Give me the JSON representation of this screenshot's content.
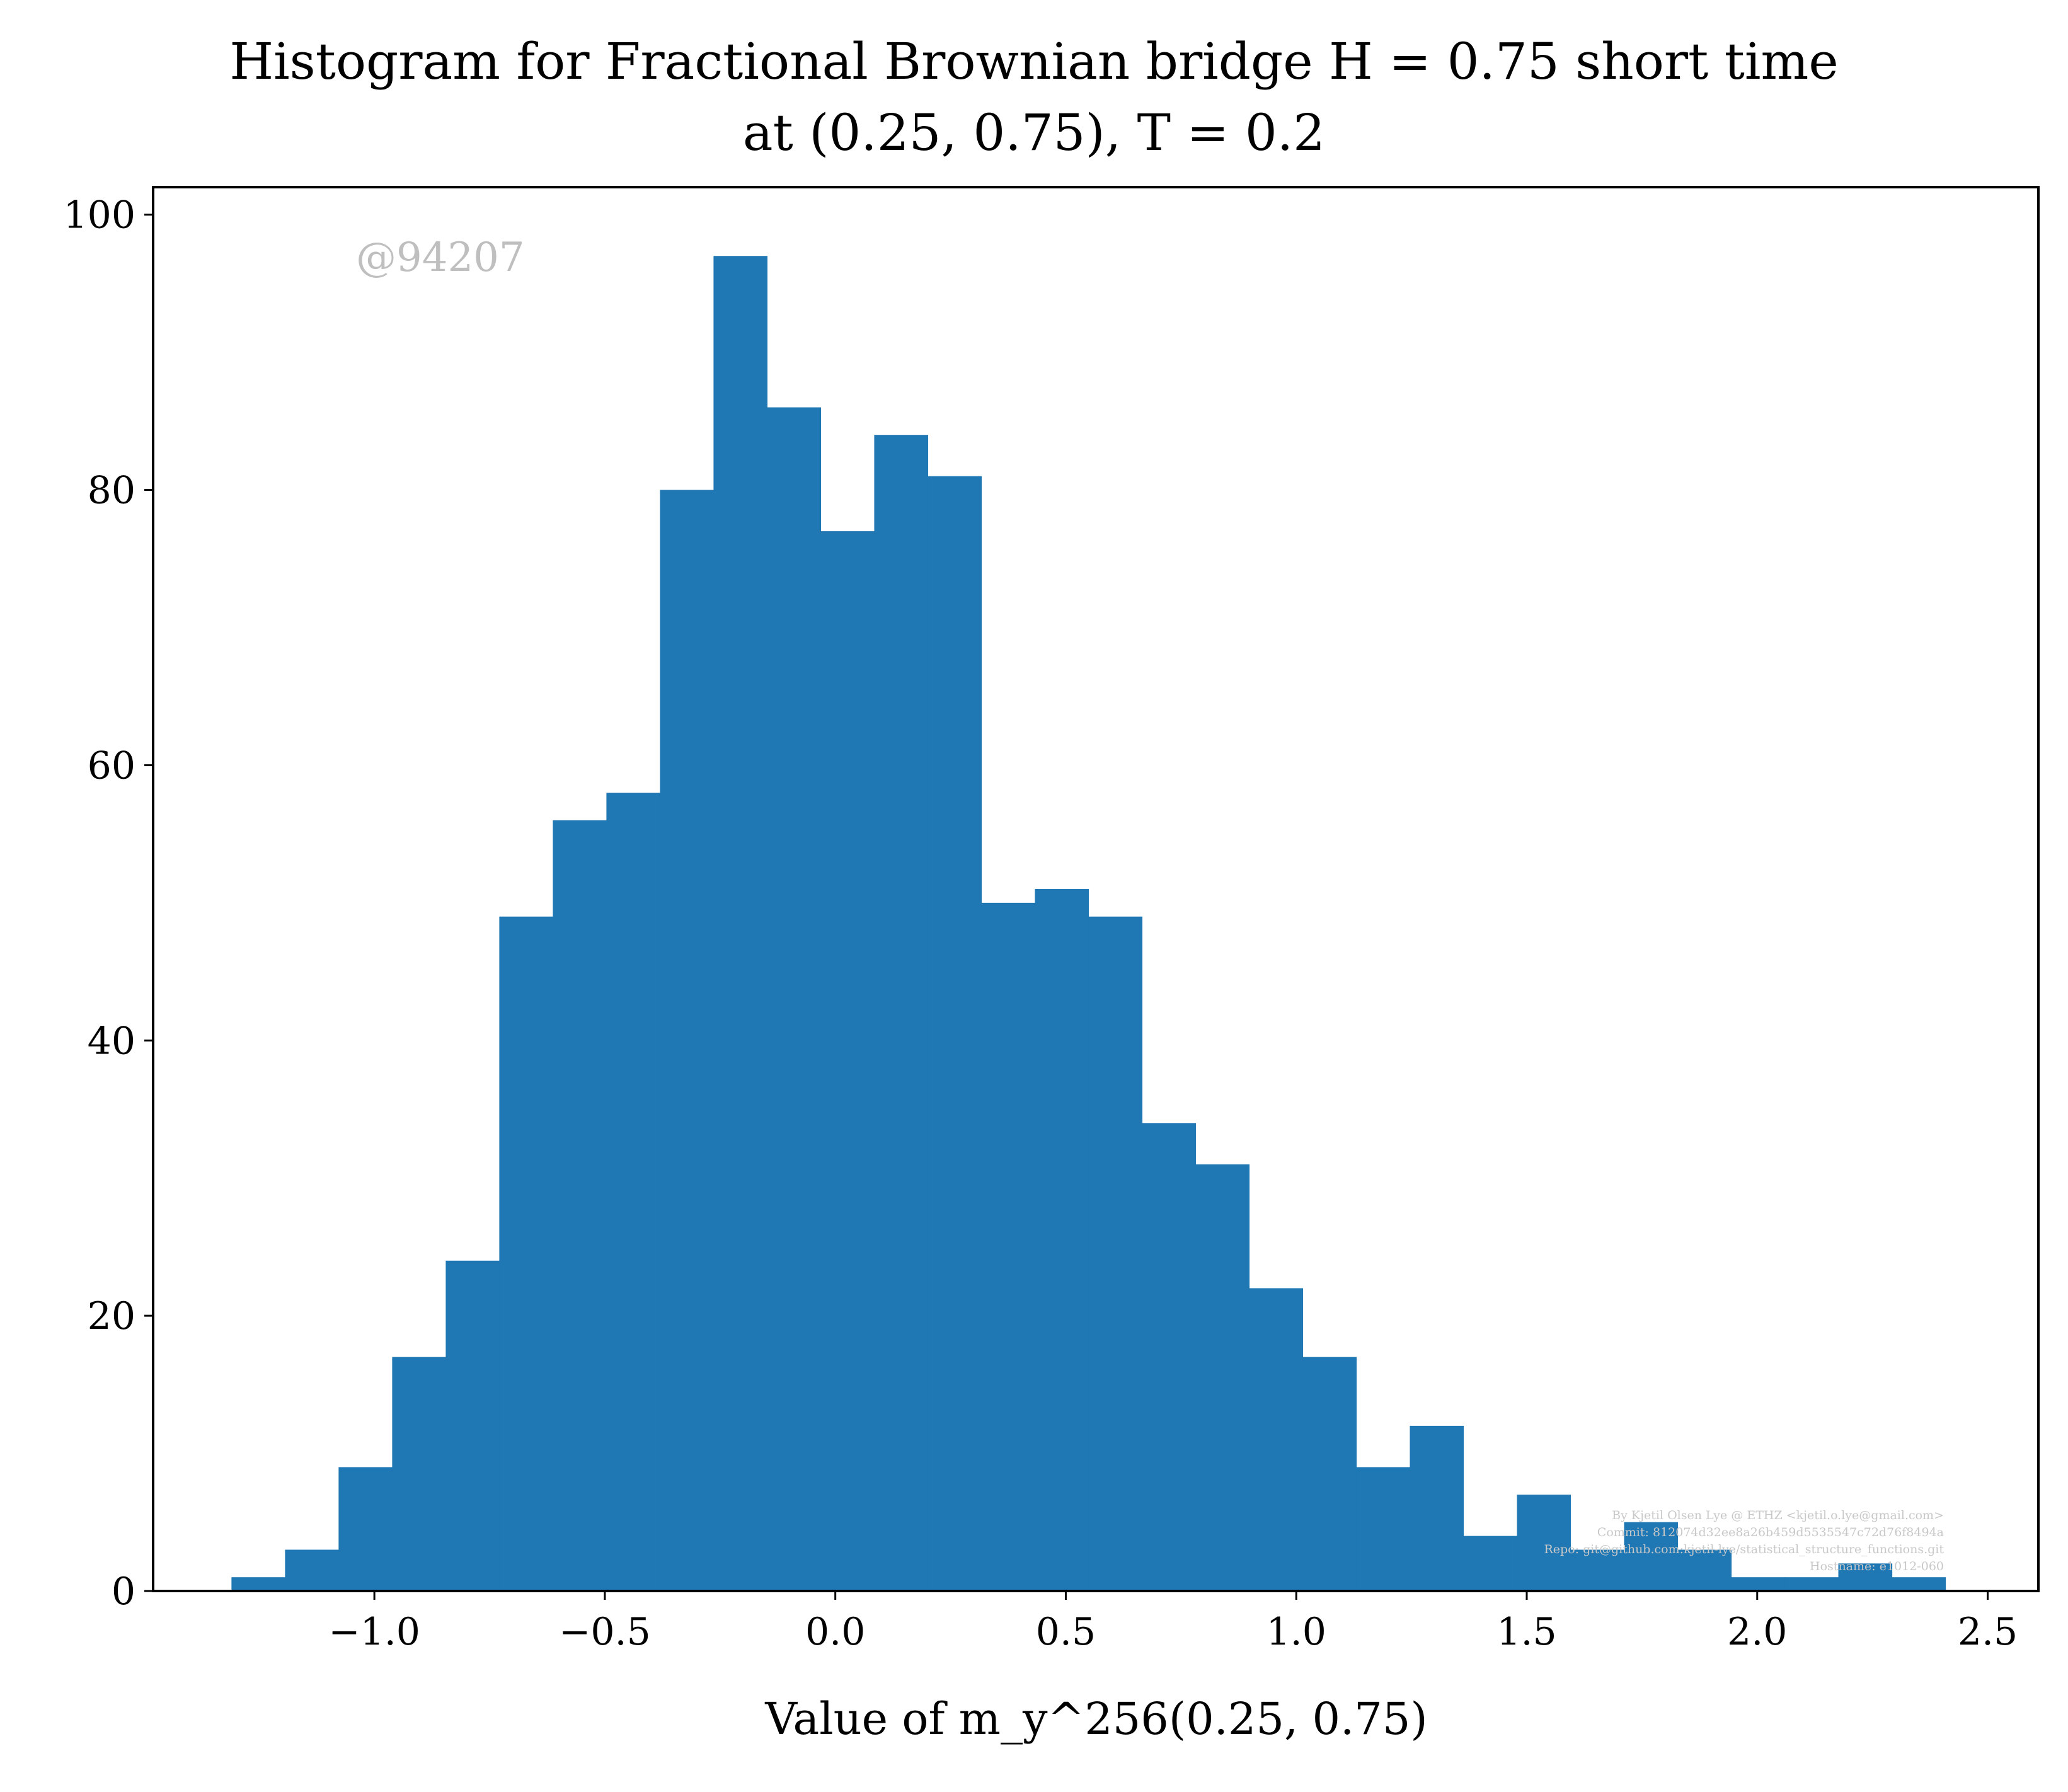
{
  "chart_data": {
    "type": "bar",
    "title_line1": "Histogram for Fractional Brownian bridge H = 0.75 short time",
    "title_line2": "at (0.25, 0.75), T = 0.2",
    "xlabel": "Value of m_y^256(0.25, 0.75)",
    "ylabel": "",
    "xlim": [
      -1.48,
      2.61
    ],
    "ylim": [
      0,
      102
    ],
    "x_ticks": [
      -1.0,
      -0.5,
      0.0,
      0.5,
      1.0,
      1.5,
      2.0,
      2.5
    ],
    "x_tick_labels": [
      "−1.0",
      "−0.5",
      "0.0",
      "0.5",
      "1.0",
      "1.5",
      "2.0",
      "2.5"
    ],
    "y_ticks": [
      0,
      20,
      40,
      60,
      80,
      100
    ],
    "y_tick_labels": [
      "0",
      "20",
      "40",
      "60",
      "80",
      "100"
    ],
    "bin_start": -1.31,
    "bin_width": 0.1162,
    "values": [
      1,
      3,
      9,
      17,
      24,
      49,
      56,
      58,
      80,
      97,
      86,
      77,
      84,
      81,
      50,
      51,
      49,
      34,
      31,
      22,
      17,
      9,
      12,
      4,
      7,
      3,
      5,
      3,
      1,
      1,
      2,
      1
    ],
    "bar_color": "#1f77b4",
    "grid": false,
    "legend": "none"
  },
  "watermark": "@94207",
  "credit_lines": [
    "By Kjetil Olsen Lye @ ETHZ <kjetil.o.lye@gmail.com>",
    "Commit: 812074d32ee8a26b459d5535547c72d76f8494a",
    "Repo: git@github.com:kjetil-lye/statistical_structure_functions.git",
    "Hostname: e1012-060"
  ]
}
